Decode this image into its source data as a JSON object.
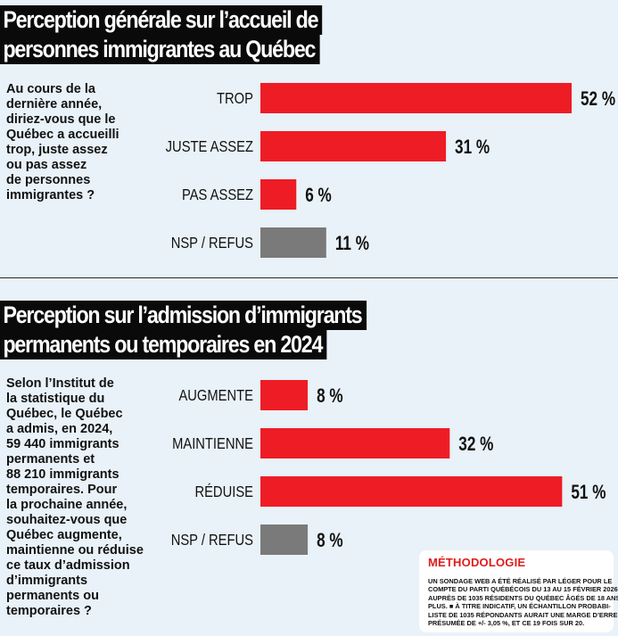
{
  "colors": {
    "red": "#ee1c25",
    "gray": "#7a7a7a",
    "black": "#0a0a0a",
    "background": "#e9f2f8"
  },
  "section1": {
    "title_lines": [
      "Perception générale sur l’accueil de",
      "personnes immigrantes au Québec"
    ],
    "question_lines": [
      "Au cours de la",
      "dernière année,",
      "diriez-vous que le",
      "Québec a accueilli",
      "trop, juste assez",
      "ou pas assez",
      "de personnes",
      "immigrantes ?"
    ]
  },
  "section2": {
    "title_lines": [
      "Perception sur l’admission d’immigrants",
      "permanents ou temporaires en 2024"
    ],
    "question_lines": [
      "Selon l’Institut de",
      "la statistique du",
      "Québec, le Québec",
      "a admis, en 2024,",
      "59 440 immigrants",
      "permanents et",
      "88 210 immigrants",
      "temporaires. Pour",
      "la prochaine année,",
      "souhaitez-vous que",
      "Québec augmente,",
      "maintienne ou réduise",
      "ce taux d’admission",
      "d’immigrants",
      "permanents ou",
      "temporaires ?"
    ]
  },
  "methodology": {
    "title": "MÉTHODOLOGIE",
    "text_lines": [
      "UN SONDAGE WEB A ÉTÉ RÉALISÉ PAR LÉGER POUR LE",
      "COMPTE DU PARTI QUÉBÉCOIS DU 13 AU 15 FÉVRIER 2026",
      "AUPRÈS DE 1035 RÉSIDENTS DU QUÉBEC ÂGÉS DE 18 ANS OU",
      "PLUS. ■ À TITRE INDICATIF, UN ÉCHANTILLON PROBABI-",
      "LISTE DE 1035 RÉPONDANTS AURAIT UNE MARGE D’ERREUR",
      "PRÉSUMÉE DE +/- 3,05 %, ET CE 19 FOIS SUR 20."
    ]
  },
  "chart_data": [
    {
      "type": "bar",
      "orientation": "horizontal",
      "title": "Perception générale sur l’accueil de personnes immigrantes au Québec",
      "categories": [
        "TROP",
        "JUSTE ASSEZ",
        "PAS ASSEZ",
        "NSP / REFUS"
      ],
      "values": [
        52,
        31,
        6,
        11
      ],
      "value_labels": [
        "52 %",
        "31 %",
        "6 %",
        "11 %"
      ],
      "bar_colors": [
        "#ee1c25",
        "#ee1c25",
        "#ee1c25",
        "#7a7a7a"
      ],
      "xlim": [
        0,
        52
      ],
      "grid": false,
      "legend": "none"
    },
    {
      "type": "bar",
      "orientation": "horizontal",
      "title": "Perception sur l’admission d’immigrants permanents ou temporaires en 2024",
      "categories": [
        "AUGMENTE",
        "MAINTIENNE",
        "RÉDUISE",
        "NSP / REFUS"
      ],
      "values": [
        8,
        32,
        51,
        8
      ],
      "value_labels": [
        "8 %",
        "32 %",
        "51 %",
        "8 %"
      ],
      "bar_colors": [
        "#ee1c25",
        "#ee1c25",
        "#ee1c25",
        "#7a7a7a"
      ],
      "xlim": [
        0,
        52
      ],
      "grid": false,
      "legend": "none"
    }
  ]
}
